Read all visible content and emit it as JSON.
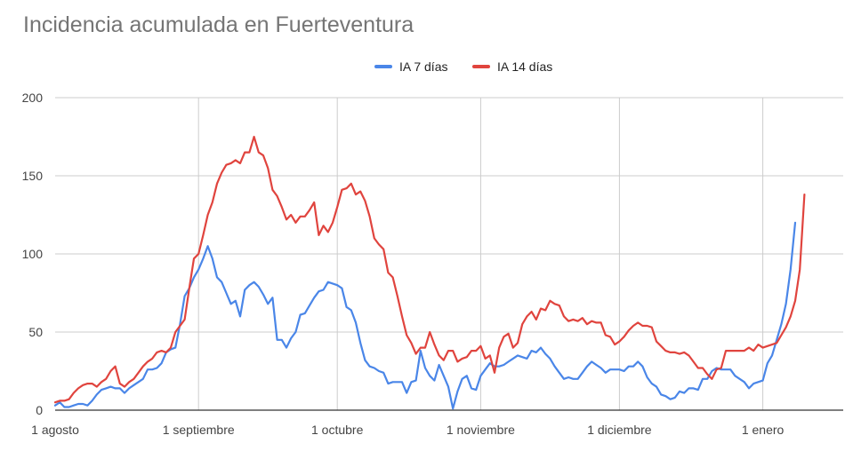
{
  "chart_data": {
    "type": "line",
    "title": "Incidencia acumulada en Fuerteventura",
    "xlabel": "",
    "ylabel": "",
    "ylim": [
      0,
      200
    ],
    "y_ticks": [
      "0",
      "50",
      "100",
      "150",
      "200"
    ],
    "x_ticks": [
      "1 agosto",
      "1 septiembre",
      "1 octubre",
      "1 noviembre",
      "1 diciembre",
      "1 enero"
    ],
    "x_tick_days": [
      0,
      31,
      61,
      92,
      122,
      153
    ],
    "grid": "on",
    "legend_position": "top",
    "series": [
      {
        "name": "IA 7 días",
        "color": "#4a86e8",
        "points": [
          [
            0,
            3
          ],
          [
            1,
            5
          ],
          [
            2,
            2
          ],
          [
            3,
            2
          ],
          [
            4,
            3
          ],
          [
            5,
            4
          ],
          [
            6,
            4
          ],
          [
            7,
            3
          ],
          [
            8,
            6
          ],
          [
            9,
            10
          ],
          [
            10,
            13
          ],
          [
            11,
            14
          ],
          [
            12,
            15
          ],
          [
            13,
            14
          ],
          [
            14,
            14
          ],
          [
            15,
            11
          ],
          [
            16,
            14
          ],
          [
            17,
            16
          ],
          [
            18,
            18
          ],
          [
            19,
            20
          ],
          [
            20,
            26
          ],
          [
            21,
            26
          ],
          [
            22,
            27
          ],
          [
            23,
            30
          ],
          [
            24,
            37
          ],
          [
            25,
            39
          ],
          [
            26,
            40
          ],
          [
            27,
            55
          ],
          [
            28,
            73
          ],
          [
            29,
            78
          ],
          [
            30,
            85
          ],
          [
            31,
            90
          ],
          [
            32,
            97
          ],
          [
            33,
            105
          ],
          [
            34,
            97
          ],
          [
            35,
            85
          ],
          [
            36,
            82
          ],
          [
            37,
            75
          ],
          [
            38,
            68
          ],
          [
            39,
            70
          ],
          [
            40,
            60
          ],
          [
            41,
            77
          ],
          [
            42,
            80
          ],
          [
            43,
            82
          ],
          [
            44,
            79
          ],
          [
            45,
            74
          ],
          [
            46,
            68
          ],
          [
            47,
            72
          ],
          [
            48,
            45
          ],
          [
            49,
            45
          ],
          [
            50,
            40
          ],
          [
            51,
            46
          ],
          [
            52,
            50
          ],
          [
            53,
            61
          ],
          [
            54,
            62
          ],
          [
            55,
            67
          ],
          [
            56,
            72
          ],
          [
            57,
            76
          ],
          [
            58,
            77
          ],
          [
            59,
            82
          ],
          [
            60,
            81
          ],
          [
            61,
            80
          ],
          [
            62,
            78
          ],
          [
            63,
            66
          ],
          [
            64,
            64
          ],
          [
            65,
            56
          ],
          [
            66,
            43
          ],
          [
            67,
            32
          ],
          [
            68,
            28
          ],
          [
            69,
            27
          ],
          [
            70,
            25
          ],
          [
            71,
            24
          ],
          [
            72,
            17
          ],
          [
            73,
            18
          ],
          [
            74,
            18
          ],
          [
            75,
            18
          ],
          [
            76,
            11
          ],
          [
            77,
            18
          ],
          [
            78,
            19
          ],
          [
            79,
            38
          ],
          [
            80,
            27
          ],
          [
            81,
            22
          ],
          [
            82,
            19
          ],
          [
            83,
            29
          ],
          [
            84,
            22
          ],
          [
            85,
            15
          ],
          [
            86,
            1
          ],
          [
            87,
            12
          ],
          [
            88,
            20
          ],
          [
            89,
            22
          ],
          [
            90,
            14
          ],
          [
            91,
            13
          ],
          [
            92,
            22
          ],
          [
            93,
            26
          ],
          [
            94,
            30
          ],
          [
            95,
            28
          ],
          [
            96,
            28
          ],
          [
            97,
            29
          ],
          [
            98,
            31
          ],
          [
            99,
            33
          ],
          [
            100,
            35
          ],
          [
            101,
            34
          ],
          [
            102,
            33
          ],
          [
            103,
            38
          ],
          [
            104,
            37
          ],
          [
            105,
            40
          ],
          [
            106,
            36
          ],
          [
            107,
            33
          ],
          [
            108,
            28
          ],
          [
            109,
            24
          ],
          [
            110,
            20
          ],
          [
            111,
            21
          ],
          [
            112,
            20
          ],
          [
            113,
            20
          ],
          [
            114,
            24
          ],
          [
            115,
            28
          ],
          [
            116,
            31
          ],
          [
            117,
            29
          ],
          [
            118,
            27
          ],
          [
            119,
            24
          ],
          [
            120,
            26
          ],
          [
            121,
            26
          ],
          [
            122,
            26
          ],
          [
            123,
            25
          ],
          [
            124,
            28
          ],
          [
            125,
            28
          ],
          [
            126,
            31
          ],
          [
            127,
            28
          ],
          [
            128,
            21
          ],
          [
            129,
            17
          ],
          [
            130,
            15
          ],
          [
            131,
            10
          ],
          [
            132,
            9
          ],
          [
            133,
            7
          ],
          [
            134,
            8
          ],
          [
            135,
            12
          ],
          [
            136,
            11
          ],
          [
            137,
            14
          ],
          [
            138,
            14
          ],
          [
            139,
            13
          ],
          [
            140,
            20
          ],
          [
            141,
            20
          ],
          [
            142,
            25
          ],
          [
            143,
            27
          ],
          [
            144,
            26
          ],
          [
            145,
            26
          ],
          [
            146,
            26
          ],
          [
            147,
            22
          ],
          [
            148,
            20
          ],
          [
            149,
            18
          ],
          [
            150,
            14
          ],
          [
            151,
            17
          ],
          [
            152,
            18
          ],
          [
            153,
            19
          ],
          [
            154,
            30
          ],
          [
            155,
            35
          ],
          [
            156,
            45
          ],
          [
            157,
            55
          ],
          [
            158,
            68
          ],
          [
            159,
            90
          ],
          [
            160,
            120
          ]
        ]
      },
      {
        "name": "IA 14 días",
        "color": "#e0443e",
        "points": [
          [
            0,
            5
          ],
          [
            1,
            6
          ],
          [
            2,
            6
          ],
          [
            3,
            7
          ],
          [
            4,
            11
          ],
          [
            5,
            14
          ],
          [
            6,
            16
          ],
          [
            7,
            17
          ],
          [
            8,
            17
          ],
          [
            9,
            15
          ],
          [
            10,
            18
          ],
          [
            11,
            20
          ],
          [
            12,
            25
          ],
          [
            13,
            28
          ],
          [
            14,
            17
          ],
          [
            15,
            15
          ],
          [
            16,
            18
          ],
          [
            17,
            20
          ],
          [
            18,
            24
          ],
          [
            19,
            28
          ],
          [
            20,
            31
          ],
          [
            21,
            33
          ],
          [
            22,
            37
          ],
          [
            23,
            38
          ],
          [
            24,
            37
          ],
          [
            25,
            40
          ],
          [
            26,
            50
          ],
          [
            27,
            54
          ],
          [
            28,
            58
          ],
          [
            29,
            78
          ],
          [
            30,
            97
          ],
          [
            31,
            100
          ],
          [
            32,
            112
          ],
          [
            33,
            125
          ],
          [
            34,
            133
          ],
          [
            35,
            145
          ],
          [
            36,
            152
          ],
          [
            37,
            157
          ],
          [
            38,
            158
          ],
          [
            39,
            160
          ],
          [
            40,
            158
          ],
          [
            41,
            165
          ],
          [
            42,
            165
          ],
          [
            43,
            175
          ],
          [
            44,
            165
          ],
          [
            45,
            163
          ],
          [
            46,
            155
          ],
          [
            47,
            141
          ],
          [
            48,
            137
          ],
          [
            49,
            130
          ],
          [
            50,
            122
          ],
          [
            51,
            125
          ],
          [
            52,
            120
          ],
          [
            53,
            124
          ],
          [
            54,
            124
          ],
          [
            55,
            128
          ],
          [
            56,
            133
          ],
          [
            57,
            112
          ],
          [
            58,
            118
          ],
          [
            59,
            114
          ],
          [
            60,
            120
          ],
          [
            61,
            130
          ],
          [
            62,
            141
          ],
          [
            63,
            142
          ],
          [
            64,
            145
          ],
          [
            65,
            138
          ],
          [
            66,
            140
          ],
          [
            67,
            134
          ],
          [
            68,
            124
          ],
          [
            69,
            110
          ],
          [
            70,
            106
          ],
          [
            71,
            103
          ],
          [
            72,
            88
          ],
          [
            73,
            85
          ],
          [
            74,
            73
          ],
          [
            75,
            60
          ],
          [
            76,
            48
          ],
          [
            77,
            43
          ],
          [
            78,
            36
          ],
          [
            79,
            40
          ],
          [
            80,
            40
          ],
          [
            81,
            50
          ],
          [
            82,
            42
          ],
          [
            83,
            35
          ],
          [
            84,
            32
          ],
          [
            85,
            38
          ],
          [
            86,
            38
          ],
          [
            87,
            31
          ],
          [
            88,
            33
          ],
          [
            89,
            34
          ],
          [
            90,
            38
          ],
          [
            91,
            38
          ],
          [
            92,
            41
          ],
          [
            93,
            33
          ],
          [
            94,
            35
          ],
          [
            95,
            24
          ],
          [
            96,
            40
          ],
          [
            97,
            47
          ],
          [
            98,
            49
          ],
          [
            99,
            40
          ],
          [
            100,
            43
          ],
          [
            101,
            55
          ],
          [
            102,
            60
          ],
          [
            103,
            63
          ],
          [
            104,
            58
          ],
          [
            105,
            65
          ],
          [
            106,
            64
          ],
          [
            107,
            70
          ],
          [
            108,
            68
          ],
          [
            109,
            67
          ],
          [
            110,
            60
          ],
          [
            111,
            57
          ],
          [
            112,
            58
          ],
          [
            113,
            57
          ],
          [
            114,
            59
          ],
          [
            115,
            55
          ],
          [
            116,
            57
          ],
          [
            117,
            56
          ],
          [
            118,
            56
          ],
          [
            119,
            48
          ],
          [
            120,
            47
          ],
          [
            121,
            42
          ],
          [
            122,
            44
          ],
          [
            123,
            47
          ],
          [
            124,
            51
          ],
          [
            125,
            54
          ],
          [
            126,
            56
          ],
          [
            127,
            54
          ],
          [
            128,
            54
          ],
          [
            129,
            53
          ],
          [
            130,
            44
          ],
          [
            131,
            41
          ],
          [
            132,
            38
          ],
          [
            133,
            37
          ],
          [
            134,
            37
          ],
          [
            135,
            36
          ],
          [
            136,
            37
          ],
          [
            137,
            35
          ],
          [
            138,
            31
          ],
          [
            139,
            27
          ],
          [
            140,
            27
          ],
          [
            141,
            23
          ],
          [
            142,
            20
          ],
          [
            143,
            26
          ],
          [
            144,
            27
          ],
          [
            145,
            38
          ],
          [
            146,
            38
          ],
          [
            147,
            38
          ],
          [
            148,
            38
          ],
          [
            149,
            38
          ],
          [
            150,
            40
          ],
          [
            151,
            38
          ],
          [
            152,
            42
          ],
          [
            153,
            40
          ],
          [
            154,
            41
          ],
          [
            155,
            42
          ],
          [
            156,
            43
          ],
          [
            157,
            48
          ],
          [
            158,
            53
          ],
          [
            159,
            60
          ],
          [
            160,
            70
          ],
          [
            161,
            90
          ],
          [
            162,
            138
          ]
        ]
      }
    ]
  }
}
